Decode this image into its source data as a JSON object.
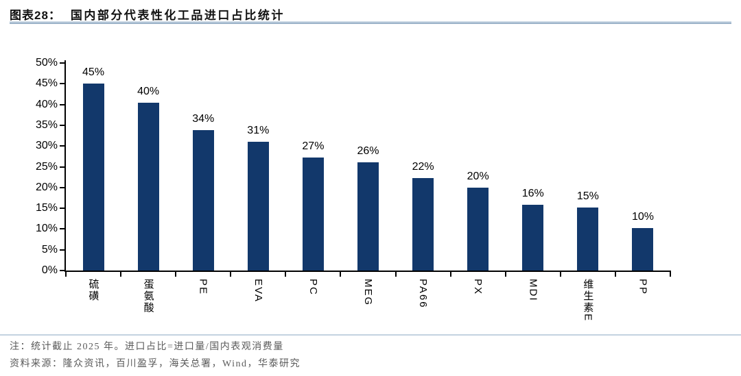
{
  "header": {
    "figure_label": "图表28：",
    "figure_title": "国内部分代表性化工品进口占比统计"
  },
  "chart_data": {
    "type": "bar",
    "title": "国内部分代表性化工品进口占比统计",
    "categories": [
      "硫磺",
      "蛋氨酸",
      "PE",
      "EVA",
      "PC",
      "MEG",
      "PA66",
      "PX",
      "MDI",
      "维生素E",
      "PP"
    ],
    "values": [
      45,
      40.5,
      33.8,
      31,
      27.3,
      26.1,
      22.2,
      20,
      15.8,
      15.1,
      10.3
    ],
    "value_labels": [
      "45%",
      "40%",
      "34%",
      "31%",
      "27%",
      "26%",
      "22%",
      "20%",
      "16%",
      "15%",
      "10%"
    ],
    "xlabel": "",
    "ylabel": "",
    "ylim": [
      0,
      50
    ],
    "ytick_step": 5,
    "ytick_labels": [
      "0%",
      "5%",
      "10%",
      "15%",
      "20%",
      "25%",
      "30%",
      "35%",
      "40%",
      "45%",
      "50%"
    ],
    "grid": false,
    "legend": null,
    "bar_color": "#12386B"
  },
  "notes": {
    "note1": "注：统计截止 2025 年。进口占比=进口量/国内表观消费量",
    "note2": "资料来源：隆众资讯，百川盈孚，海关总署，Wind，华泰研究"
  },
  "colors": {
    "bar": "#12386B",
    "axis": "#000000",
    "title_rule": "#a9bed2",
    "note_rule": "#c3d2e0",
    "note_text": "#5a5a5a"
  }
}
